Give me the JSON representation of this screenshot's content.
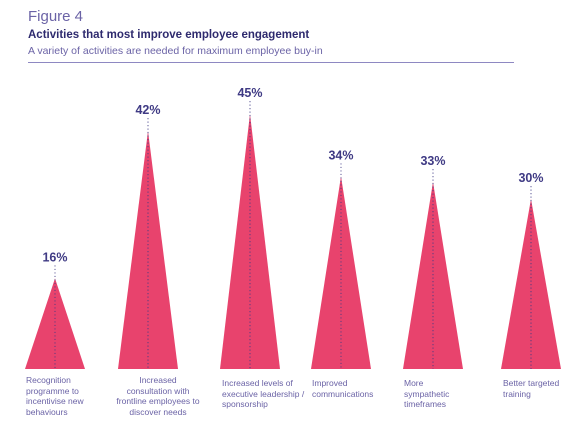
{
  "figure_label": "Figure 4",
  "colors": {
    "bar": "#e8436d",
    "accent": "#3f3a84",
    "text": "#6b63a6"
  },
  "chart_data": {
    "type": "bar",
    "title": "Activities that most improve employee engagement",
    "subtitle": "A variety of activities are needed for maximum employee buy-in",
    "unit": "%",
    "categories": [
      "Recognition programme to incentivise new behaviours",
      "Increased consultation with frontline employees to discover needs",
      "Increased levels of executive leadership / sponsorship",
      "Improved communications",
      "More sympathetic timeframes",
      "Better targeted training"
    ],
    "values": [
      16,
      42,
      45,
      34,
      33,
      30
    ],
    "labels": [
      "16%",
      "42%",
      "45%",
      "34%",
      "33%",
      "30%"
    ],
    "ylim": [
      0,
      45
    ]
  }
}
